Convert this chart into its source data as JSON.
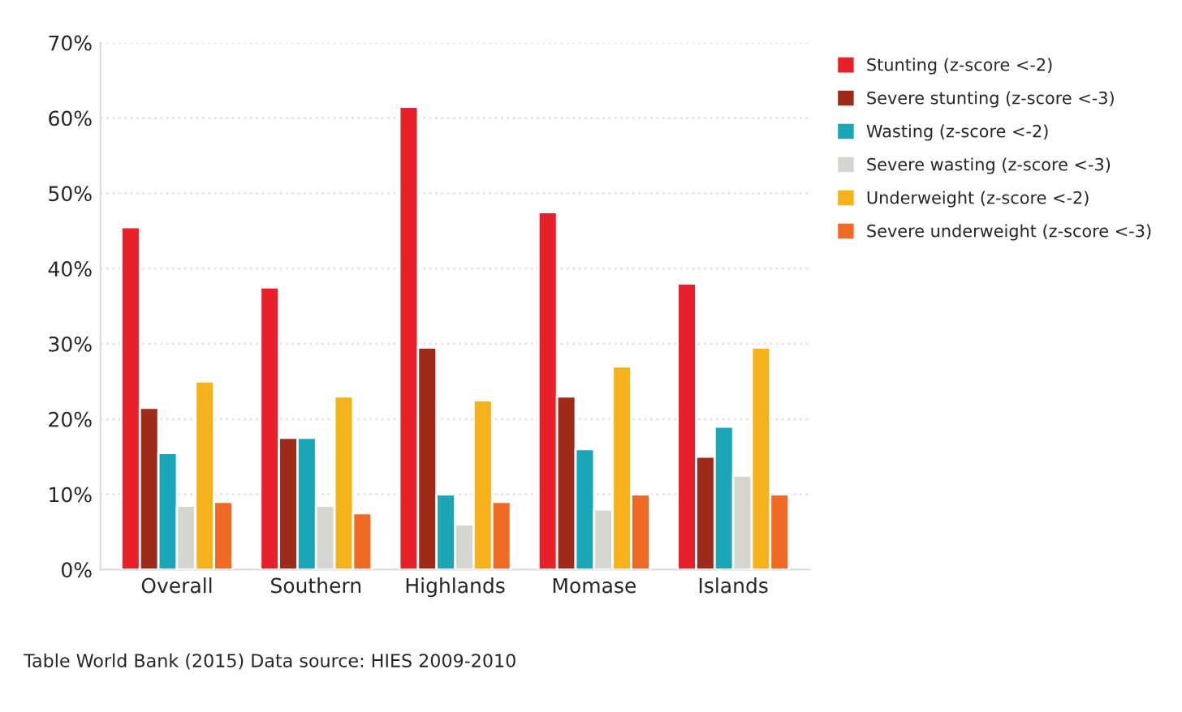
{
  "chart_data": {
    "type": "bar",
    "categories": [
      "Overall",
      "Southern",
      "Highlands",
      "Momase",
      "Islands"
    ],
    "series": [
      {
        "name": "Stunting (z-score <-2)",
        "color": "#e8202a",
        "values": [
          45.5,
          37.5,
          61.5,
          47.5,
          38
        ]
      },
      {
        "name": "Severe stunting (z-score <-3)",
        "color": "#9e2a1a",
        "values": [
          21.5,
          17.5,
          29.5,
          23,
          15
        ]
      },
      {
        "name": "Wasting (z-score <-2)",
        "color": "#1aa6b7",
        "values": [
          15.5,
          17.5,
          10,
          16,
          19
        ]
      },
      {
        "name": "Severe wasting (z-score <-3)",
        "color": "#d6d6d0",
        "values": [
          8.5,
          8.5,
          6,
          8,
          12.5
        ]
      },
      {
        "name": "Underweight (z-score <-2)",
        "color": "#f5b21a",
        "values": [
          25,
          23,
          22.5,
          27,
          29.5
        ]
      },
      {
        "name": "Severe underweight (z-score <-3)",
        "color": "#ef6a25",
        "values": [
          9,
          7.5,
          9,
          10,
          10
        ]
      }
    ],
    "ylim": [
      0,
      70
    ],
    "yticks": [
      {
        "value": 0,
        "label": "0%"
      },
      {
        "value": 10,
        "label": "10%"
      },
      {
        "value": 20,
        "label": "20%"
      },
      {
        "value": 30,
        "label": "30%"
      },
      {
        "value": 40,
        "label": "40%"
      },
      {
        "value": 50,
        "label": "50%"
      },
      {
        "value": 60,
        "label": "60%"
      },
      {
        "value": 70,
        "label": "70%"
      }
    ],
    "grid": "y",
    "legend": "top right",
    "annotations": [
      "Table World Bank (2015) Data source: HIES 2009-2010"
    ]
  }
}
